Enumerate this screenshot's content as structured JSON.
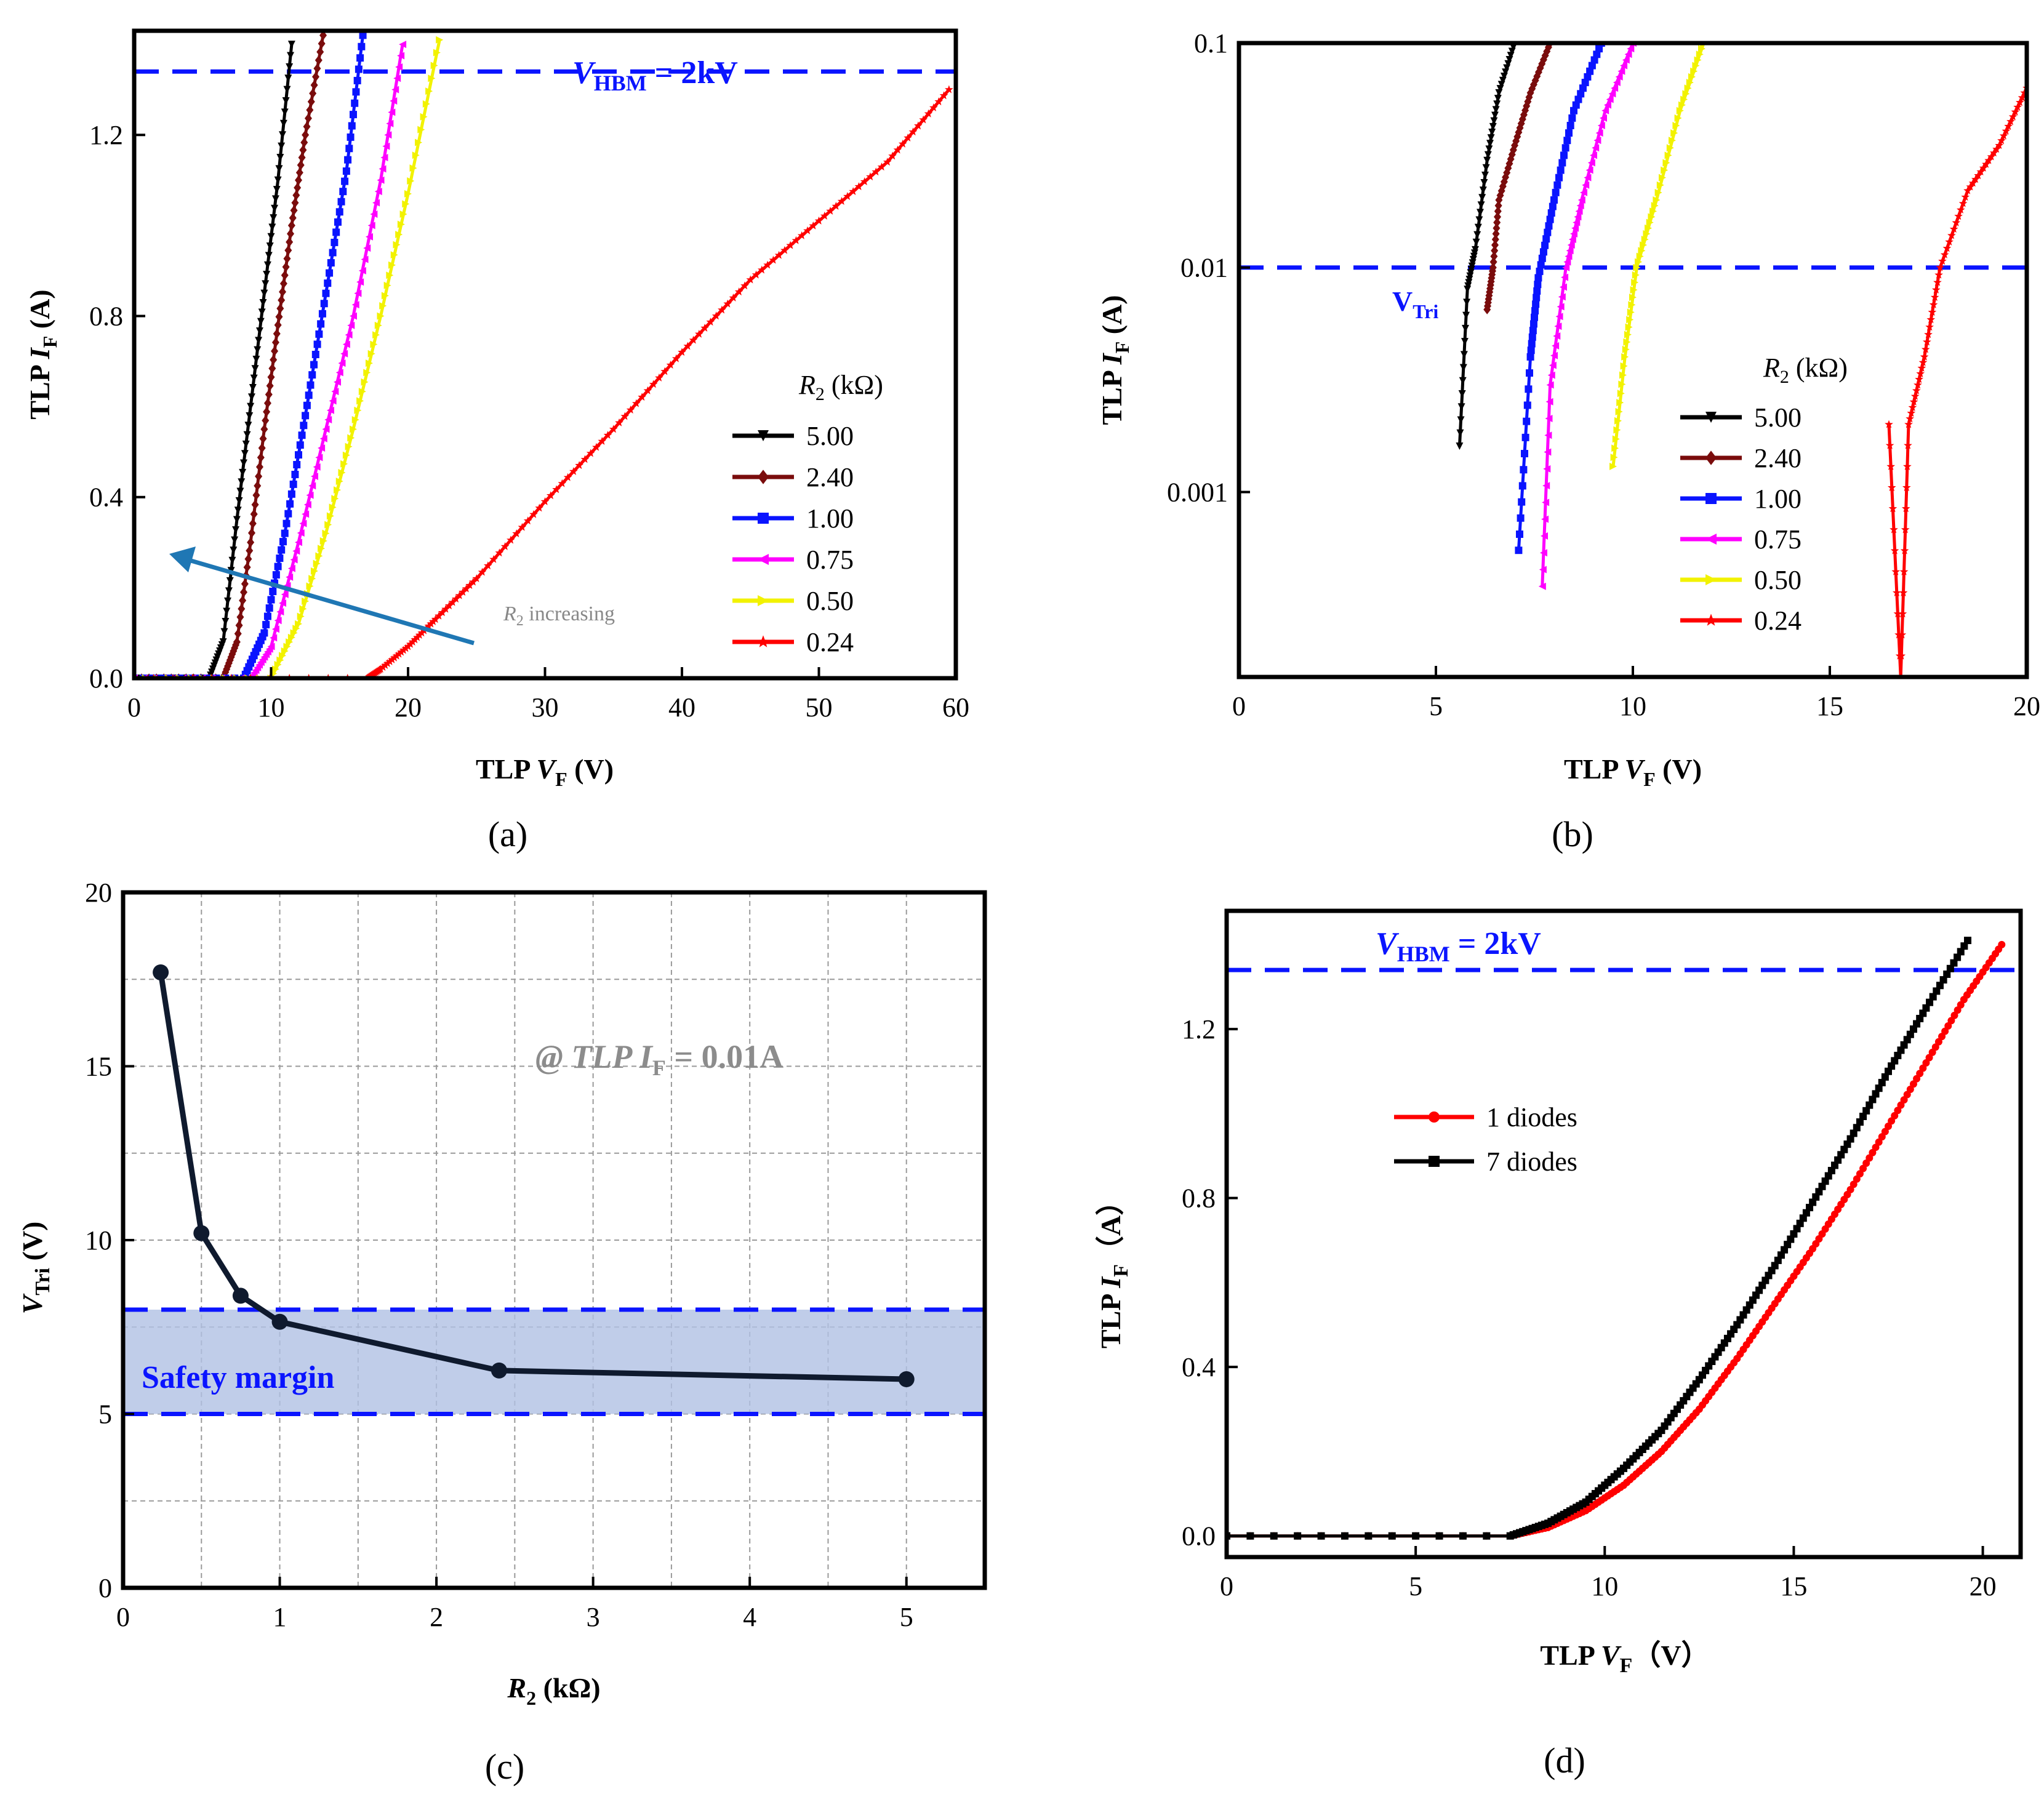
{
  "chart_data": [
    {
      "panel": "(a)",
      "type": "line",
      "xlabel": "TLP V_F (V)",
      "ylabel": "TLP I_F (A)",
      "xlim": [
        0,
        60
      ],
      "ylim": [
        0,
        1.43
      ],
      "xticks": [
        0,
        10,
        20,
        30,
        40,
        50,
        60
      ],
      "yticks": [
        0.0,
        0.4,
        0.8,
        1.2
      ],
      "xtick_labels": [
        "0",
        "10",
        "20",
        "30",
        "40",
        "50",
        "60"
      ],
      "ytick_labels": [
        "0.0",
        "0.4",
        "0.8",
        "1.2"
      ],
      "legend_title": "R2 (kΩ)",
      "reference_line": {
        "y": 1.34,
        "label": "VHBM = 2kV"
      },
      "annotation": "R2 increasing",
      "series": [
        {
          "name": "5.00",
          "color": "#000000",
          "marker": "tri-down",
          "x": [
            0,
            5.5,
            6.5,
            7.5,
            8.5,
            9.5,
            10.5,
            11.5
          ],
          "y": [
            0,
            0,
            0.08,
            0.35,
            0.6,
            0.85,
            1.1,
            1.4
          ]
        },
        {
          "name": "2.40",
          "color": "#7a0c0c",
          "marker": "diamond",
          "x": [
            0,
            6.5,
            7.5,
            8.5,
            9.5,
            10.5,
            11.5,
            12.5,
            13.8
          ],
          "y": [
            0,
            0,
            0.08,
            0.3,
            0.55,
            0.78,
            1.0,
            1.2,
            1.42
          ]
        },
        {
          "name": "1.00",
          "color": "#0a14ff",
          "marker": "square",
          "x": [
            0,
            8,
            9.5,
            11,
            12.5,
            14,
            15.5,
            16.7
          ],
          "y": [
            0,
            0,
            0.1,
            0.32,
            0.58,
            0.85,
            1.12,
            1.42
          ]
        },
        {
          "name": "0.75",
          "color": "#ff00ff",
          "marker": "tri-left",
          "x": [
            0,
            8.5,
            10,
            12,
            14,
            16,
            18,
            19.6
          ],
          "y": [
            0,
            0,
            0.07,
            0.3,
            0.55,
            0.8,
            1.1,
            1.4
          ]
        },
        {
          "name": "0.50",
          "color": "#f2f200",
          "marker": "tri-right",
          "x": [
            0,
            10,
            12,
            14,
            16,
            18,
            20,
            22.3
          ],
          "y": [
            0,
            0,
            0.12,
            0.32,
            0.55,
            0.8,
            1.07,
            1.41
          ]
        },
        {
          "name": "0.24",
          "color": "#ff0000",
          "marker": "star",
          "x": [
            0,
            17,
            18,
            20,
            22,
            25,
            30,
            35,
            40,
            45,
            50,
            55,
            59.5
          ],
          "y": [
            0,
            0,
            0.02,
            0.07,
            0.13,
            0.22,
            0.39,
            0.55,
            0.72,
            0.88,
            1.01,
            1.14,
            1.3
          ]
        }
      ]
    },
    {
      "panel": "(b)",
      "type": "line",
      "xlabel": "TLP V_F (V)",
      "ylabel": "TLP I_F (A)",
      "xscale": "linear",
      "yscale": "log",
      "xlim": [
        0,
        20
      ],
      "ylim": [
        0.00015,
        0.1
      ],
      "xticks": [
        0,
        5,
        10,
        15,
        20
      ],
      "yticks": [
        0.001,
        0.01,
        0.1
      ],
      "xtick_labels": [
        "0",
        "5",
        "10",
        "15",
        "20"
      ],
      "ytick_labels": [
        "0.001",
        "0.01",
        "0.1"
      ],
      "legend_title": "R2 (kΩ)",
      "reference_line": {
        "y": 0.01,
        "label": "VTri"
      },
      "series": [
        {
          "name": "5.00",
          "color": "#000000",
          "marker": "tri-down",
          "x": [
            5.6,
            5.8,
            6.0,
            6.3,
            6.6,
            7.0
          ],
          "y": [
            0.0016,
            0.008,
            0.012,
            0.03,
            0.06,
            0.1
          ]
        },
        {
          "name": "2.40",
          "color": "#7a0c0c",
          "marker": "diamond",
          "x": [
            6.3,
            6.45,
            6.6,
            7.0,
            7.4,
            7.9
          ],
          "y": [
            0.0065,
            0.01,
            0.02,
            0.035,
            0.06,
            0.1
          ]
        },
        {
          "name": "1.00",
          "color": "#0a14ff",
          "marker": "square",
          "x": [
            7.1,
            7.4,
            7.6,
            8.0,
            8.5,
            9.2
          ],
          "y": [
            0.00055,
            0.004,
            0.009,
            0.02,
            0.05,
            0.1
          ]
        },
        {
          "name": "0.75",
          "color": "#ff00ff",
          "marker": "tri-left",
          "x": [
            7.7,
            7.9,
            8.3,
            8.7,
            9.3,
            10.0
          ],
          "y": [
            0.00038,
            0.003,
            0.01,
            0.02,
            0.05,
            0.1
          ]
        },
        {
          "name": "0.50",
          "color": "#f2f200",
          "marker": "tri-right",
          "x": [
            9.5,
            9.8,
            10.1,
            10.6,
            11.2,
            11.8
          ],
          "y": [
            0.0013,
            0.004,
            0.01,
            0.02,
            0.05,
            0.1
          ]
        },
        {
          "name": "0.24",
          "color": "#ff0000",
          "marker": "star",
          "x": [
            16.5,
            16.8,
            17.0,
            17.4,
            17.8,
            18.5,
            19.3,
            20.0
          ],
          "y": [
            0.002,
            0.00015,
            0.002,
            0.004,
            0.01,
            0.022,
            0.035,
            0.063
          ]
        }
      ]
    },
    {
      "panel": "(c)",
      "type": "line",
      "xlabel": "R2 (kΩ)",
      "ylabel": "VTri (V)",
      "xlim": [
        0,
        5.5
      ],
      "ylim": [
        0,
        20
      ],
      "xticks": [
        0,
        1,
        2,
        3,
        4,
        5
      ],
      "yticks": [
        0,
        5,
        10,
        15,
        20
      ],
      "xtick_labels": [
        "0",
        "1",
        "2",
        "3",
        "4",
        "5"
      ],
      "ytick_labels": [
        "0",
        "5",
        "10",
        "15",
        "20"
      ],
      "grid": true,
      "annotation": "@ TLP I_F = 0.01A",
      "band": {
        "y1": 5,
        "y2": 8,
        "label": "Safety margin"
      },
      "series": [
        {
          "name": "VTri",
          "color": "#0f1a2e",
          "marker": "circle",
          "x": [
            0.24,
            0.5,
            0.75,
            1.0,
            2.4,
            5.0
          ],
          "y": [
            17.7,
            10.2,
            8.4,
            7.65,
            6.25,
            6.0
          ]
        }
      ]
    },
    {
      "panel": "(d)",
      "type": "line",
      "xlabel": "TLP V_F (V)",
      "ylabel": "TLP I_F (A)",
      "xlim": [
        0,
        21
      ],
      "ylim": [
        -0.05,
        1.48
      ],
      "xticks": [
        0,
        5,
        10,
        15,
        20
      ],
      "yticks": [
        0.0,
        0.4,
        0.8,
        1.2
      ],
      "xtick_labels": [
        "0",
        "5",
        "10",
        "15",
        "20"
      ],
      "ytick_labels": [
        "0.0",
        "0.4",
        "0.8",
        "1.2"
      ],
      "reference_line": {
        "y": 1.34,
        "label": "VHBM = 2kV"
      },
      "series": [
        {
          "name": "1 diodes",
          "color": "#ff0000",
          "marker": "circle",
          "x": [
            0,
            7.5,
            8.5,
            9.5,
            10.5,
            11.5,
            12.5,
            13.5,
            14.5,
            15.5,
            16.5,
            17.5,
            18.5,
            19.5,
            20.5
          ],
          "y": [
            0,
            0,
            0.02,
            0.06,
            0.12,
            0.2,
            0.3,
            0.42,
            0.55,
            0.68,
            0.82,
            0.97,
            1.12,
            1.27,
            1.4
          ]
        },
        {
          "name": "7 diodes",
          "color": "#000000",
          "marker": "square",
          "x": [
            0,
            7.5,
            8.5,
            9.5,
            10.5,
            11.5,
            12.5,
            13.5,
            14.5,
            15.5,
            16.5,
            17.5,
            18.5,
            19.6
          ],
          "y": [
            0,
            0,
            0.03,
            0.08,
            0.16,
            0.25,
            0.37,
            0.5,
            0.64,
            0.79,
            0.94,
            1.1,
            1.25,
            1.41
          ]
        }
      ]
    }
  ],
  "labels": {
    "a": {
      "panel": "(a)",
      "ylabel_main": "TLP ",
      "ylabel_var": "I",
      "ylabel_sub": "F",
      "ylabel_unit": " (A)",
      "xlabel_main": "TLP ",
      "xlabel_var": "V",
      "xlabel_sub": "F",
      "xlabel_unit": " (V)",
      "ref_var": "V",
      "ref_sub": "HBM",
      "ref_rest": " = 2kV",
      "legend_var": "R",
      "legend_sub": "2",
      "legend_unit": " (kΩ)",
      "arrow_var": "R",
      "arrow_sub": "2",
      "arrow_rest": " increasing"
    },
    "b": {
      "panel": "(b)",
      "ylabel_main": "TLP ",
      "ylabel_var": "I",
      "ylabel_sub": "F",
      "ylabel_unit": " (A)",
      "xlabel_main": "TLP ",
      "xlabel_var": "V",
      "xlabel_sub": "F",
      "xlabel_unit": " (V)",
      "ref_main": "V",
      "ref_sub": "Tri",
      "legend_var": "R",
      "legend_sub": "2",
      "legend_unit": " (kΩ)"
    },
    "c": {
      "panel": "(c)",
      "ylabel_var": "V",
      "ylabel_sub": "Tri",
      "ylabel_unit": " (V)",
      "xlabel_var": "R",
      "xlabel_sub": "2",
      "xlabel_unit": " (kΩ)",
      "annot_main": "@ TLP ",
      "annot_var": "I",
      "annot_sub": "F",
      "annot_rest": " =  0.01A",
      "band_label": "Safety margin"
    },
    "d": {
      "panel": "(d)",
      "ylabel_main": "TLP ",
      "ylabel_var": "I",
      "ylabel_sub": "F",
      "ylabel_unit": "（A）",
      "xlabel_main": "TLP ",
      "xlabel_var": "V",
      "xlabel_sub": "F",
      "xlabel_unit": "（V）",
      "ref_var": "V",
      "ref_sub": "HBM",
      "ref_rest": " = 2kV"
    }
  }
}
